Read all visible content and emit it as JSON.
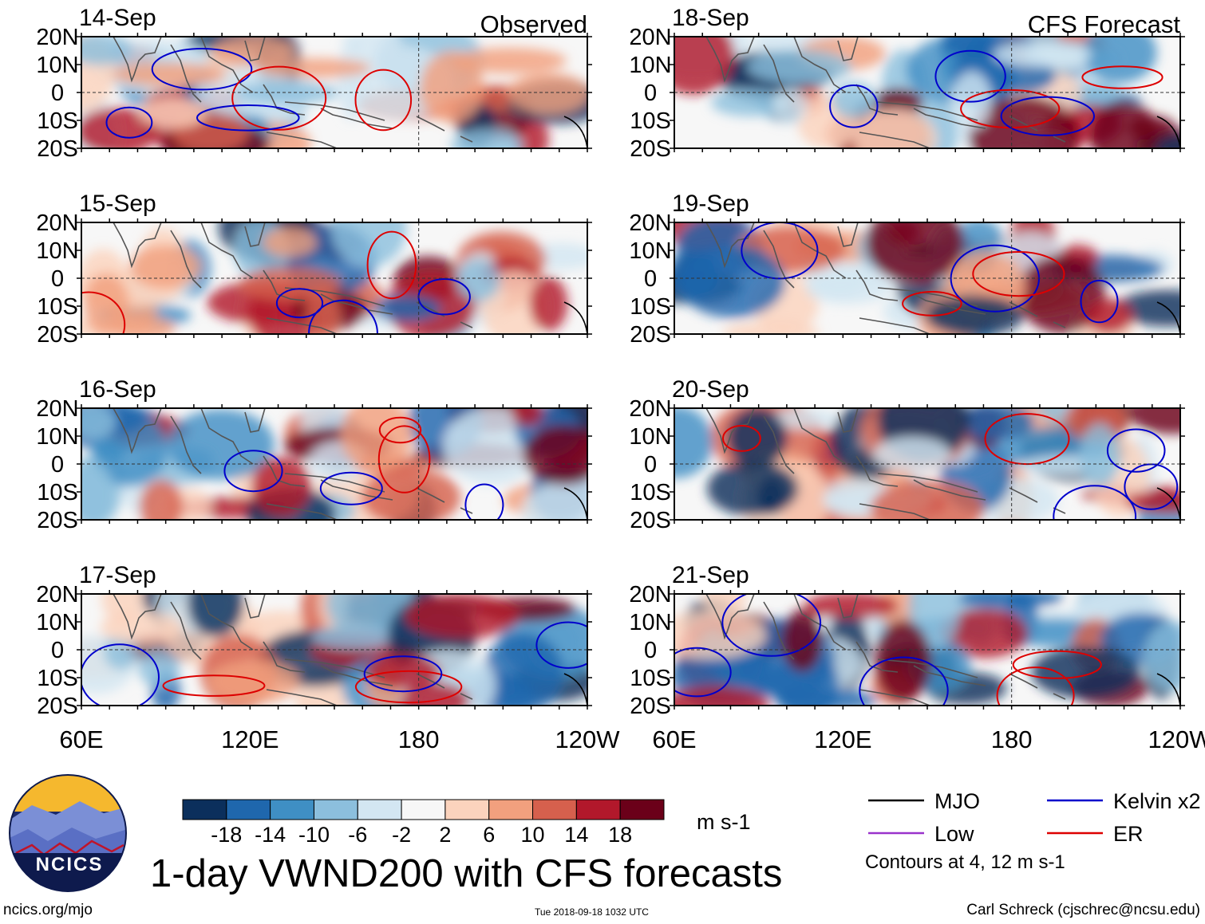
{
  "panels": [
    {
      "date": "14-Sep",
      "label": "Observed",
      "column": "observed"
    },
    {
      "date": "15-Sep",
      "label": "",
      "column": "observed"
    },
    {
      "date": "16-Sep",
      "label": "",
      "column": "observed"
    },
    {
      "date": "17-Sep",
      "label": "",
      "column": "observed"
    },
    {
      "date": "18-Sep",
      "label": "CFS Forecast",
      "column": "forecast"
    },
    {
      "date": "19-Sep",
      "label": "",
      "column": "forecast"
    },
    {
      "date": "20-Sep",
      "label": "",
      "column": "forecast"
    },
    {
      "date": "21-Sep",
      "label": "",
      "column": "forecast"
    }
  ],
  "lat_labels": [
    "20N",
    "10N",
    "0",
    "10S",
    "20S"
  ],
  "lon_labels": [
    "60E",
    "120E",
    "180",
    "120W"
  ],
  "colorbar": {
    "ticks": [
      "-18",
      "-14",
      "-10",
      "-6",
      "-2",
      "2",
      "6",
      "10",
      "14",
      "18"
    ],
    "colors": [
      "#0b2f5c",
      "#1f67ad",
      "#3f8fc4",
      "#8cbfdd",
      "#d3e6f2",
      "#f7f7f7",
      "#fbd3bd",
      "#f2a07e",
      "#d6604d",
      "#b2182b",
      "#6b0019"
    ],
    "unit": "m s-1"
  },
  "legend": {
    "items": [
      {
        "name": "MJO",
        "color": "#000000"
      },
      {
        "name": "Kelvin x2",
        "color": "#0000cc"
      },
      {
        "name": "Low",
        "color": "#9933cc"
      },
      {
        "name": "ER",
        "color": "#dd0000"
      }
    ],
    "note": "Contours at 4, 12 m s-1"
  },
  "title": "1-day VWND200 with CFS forecasts",
  "logo_text": "NCICS",
  "footer": {
    "left": "ncics.org/mjo",
    "center": "Tue 2018-09-18 1032 UTC",
    "right": "Carl Schreck (cjschrec@ncsu.edu)"
  }
}
